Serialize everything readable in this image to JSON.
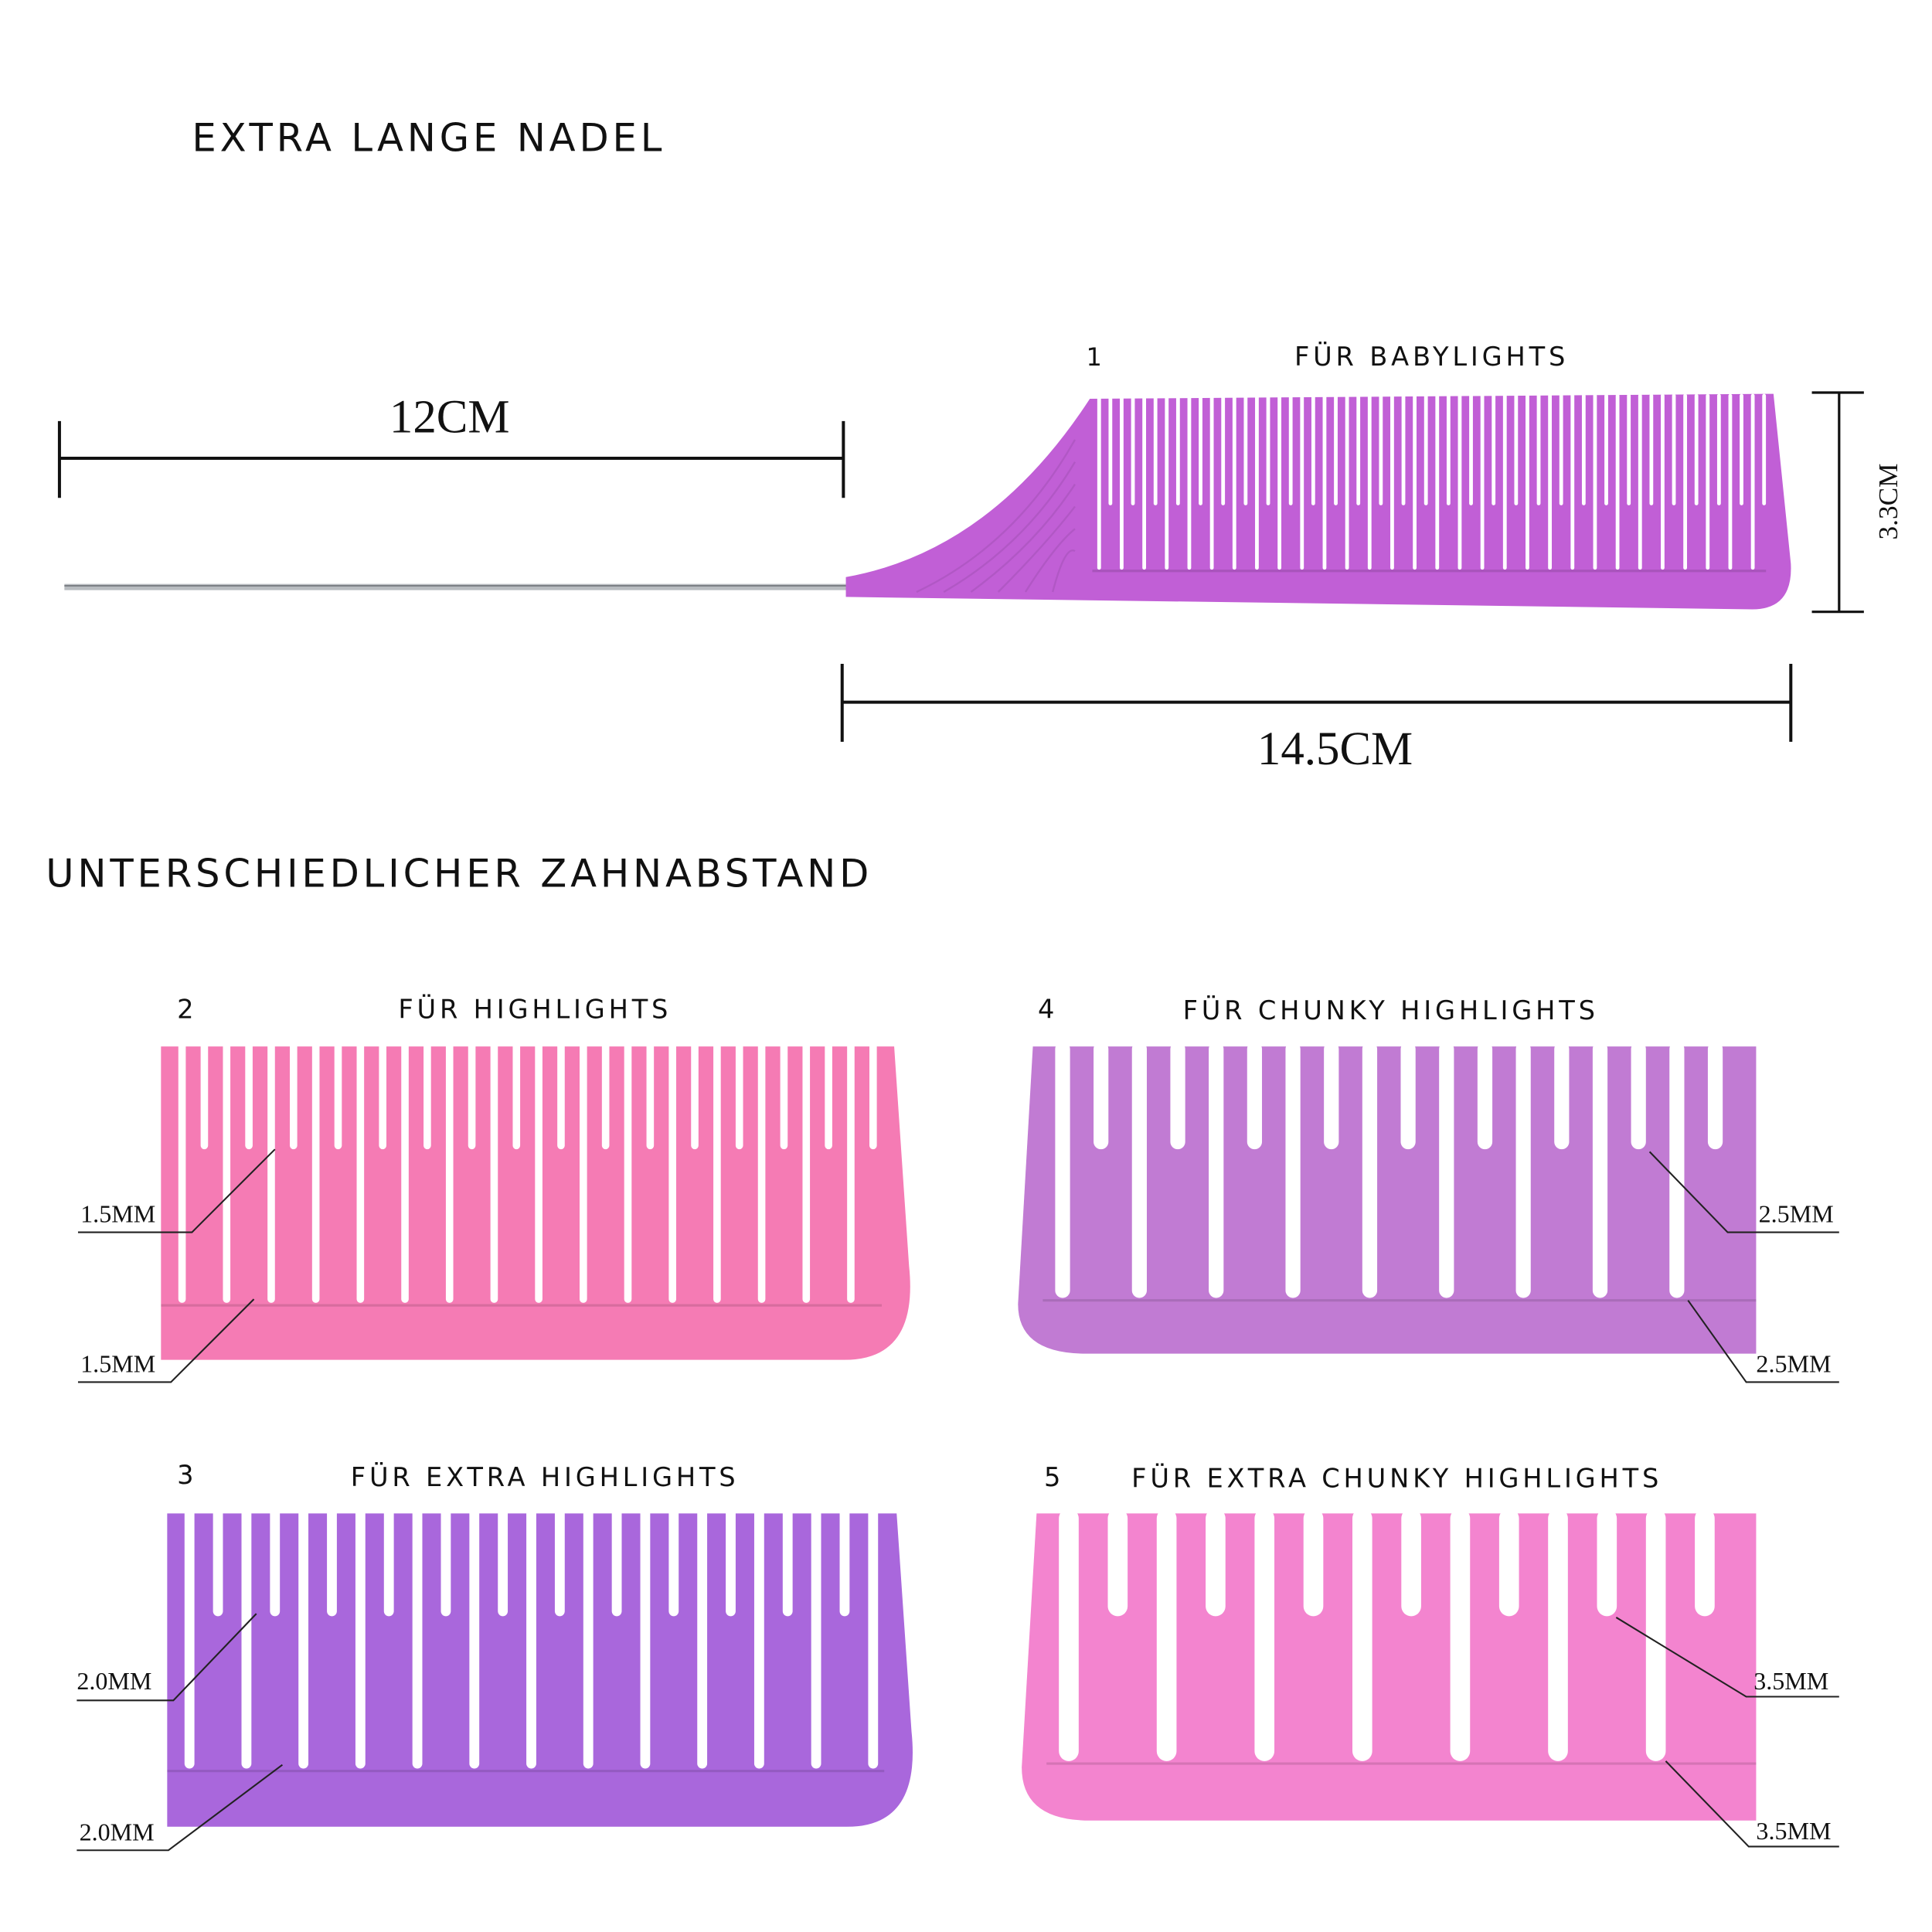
{
  "headings": {
    "needle": "EXTRA LANGE NADEL",
    "spacing": "UNTERSCHIEDLICHER ZAHNABSTAND"
  },
  "dimensions": {
    "needle_length": "12CM",
    "comb_length": "14.5CM",
    "comb_height": "3.3CM"
  },
  "combs": [
    {
      "number": "1",
      "label": "FÜR BABYLIGHTS",
      "color": "#c15fd6"
    },
    {
      "number": "2",
      "label": "FÜR HIGHLIGHTS",
      "color": "#f57bb4",
      "spacing_top": "1.5MM",
      "spacing_bottom": "1.5MM"
    },
    {
      "number": "3",
      "label": "FÜR EXTRA HIGHLIGHTS",
      "color": "#a967dc",
      "spacing_top": "2.0MM",
      "spacing_bottom": "2.0MM"
    },
    {
      "number": "4",
      "label": "FÜR CHUNKY HIGHLIGHTS",
      "color": "#c17bd3",
      "spacing_top": "2.5MM",
      "spacing_bottom": "2.5MM"
    },
    {
      "number": "5",
      "label": "FÜR EXTRA CHUNKY HIGHLIGHTS",
      "color": "#f384cf",
      "spacing_top": "3.5MM",
      "spacing_bottom": "3.5MM"
    }
  ]
}
